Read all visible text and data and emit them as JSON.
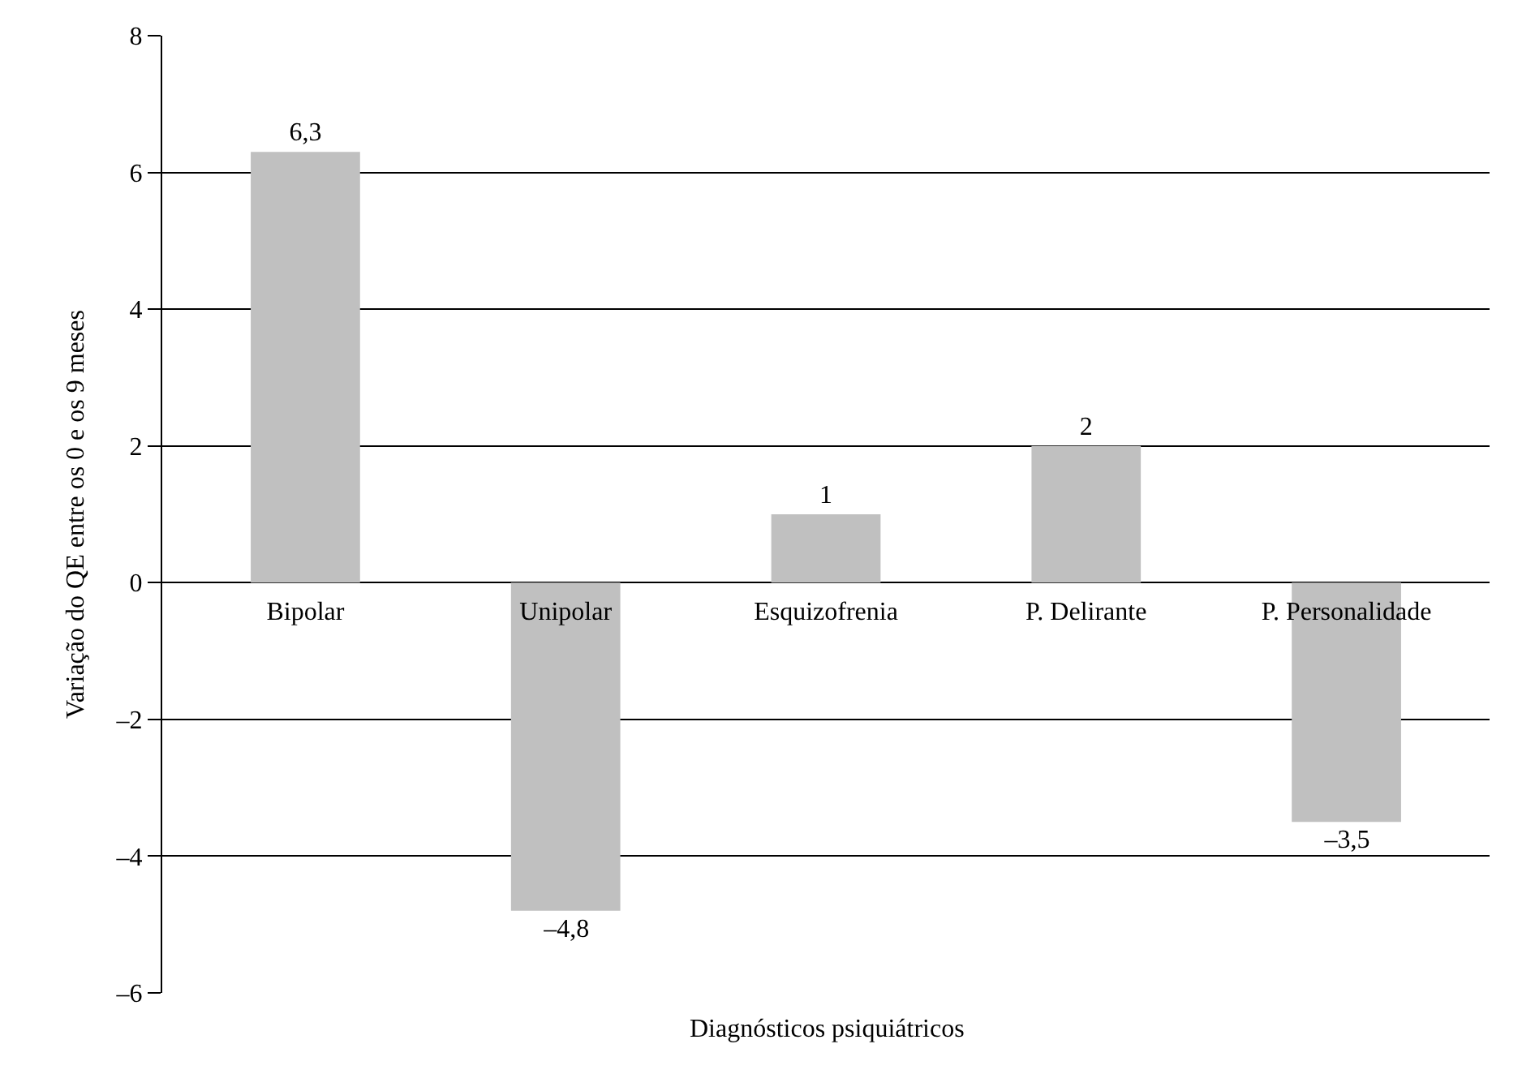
{
  "chart_data": {
    "type": "bar",
    "xlabel": "Diagnósticos psiquiátricos",
    "ylabel": "Variação do QE entre os 0 e os 9 meses",
    "categories": [
      "Bipolar",
      "Unipolar",
      "Esquizofrenia",
      "P. Delirante",
      "P. Personalidade"
    ],
    "values": [
      6.3,
      -4.8,
      1,
      2,
      -3.5
    ],
    "value_labels": [
      "6,3",
      "–4,8",
      "1",
      "2",
      "–3,5"
    ],
    "color": "#c0c0c0",
    "ylim": [
      -6,
      8
    ],
    "yticks": [
      {
        "value": -6,
        "label": "–6"
      },
      {
        "value": -4,
        "label": "–4"
      },
      {
        "value": -2,
        "label": "–2"
      },
      0,
      2,
      4,
      6,
      8
    ],
    "grid": "y",
    "legend": false
  }
}
